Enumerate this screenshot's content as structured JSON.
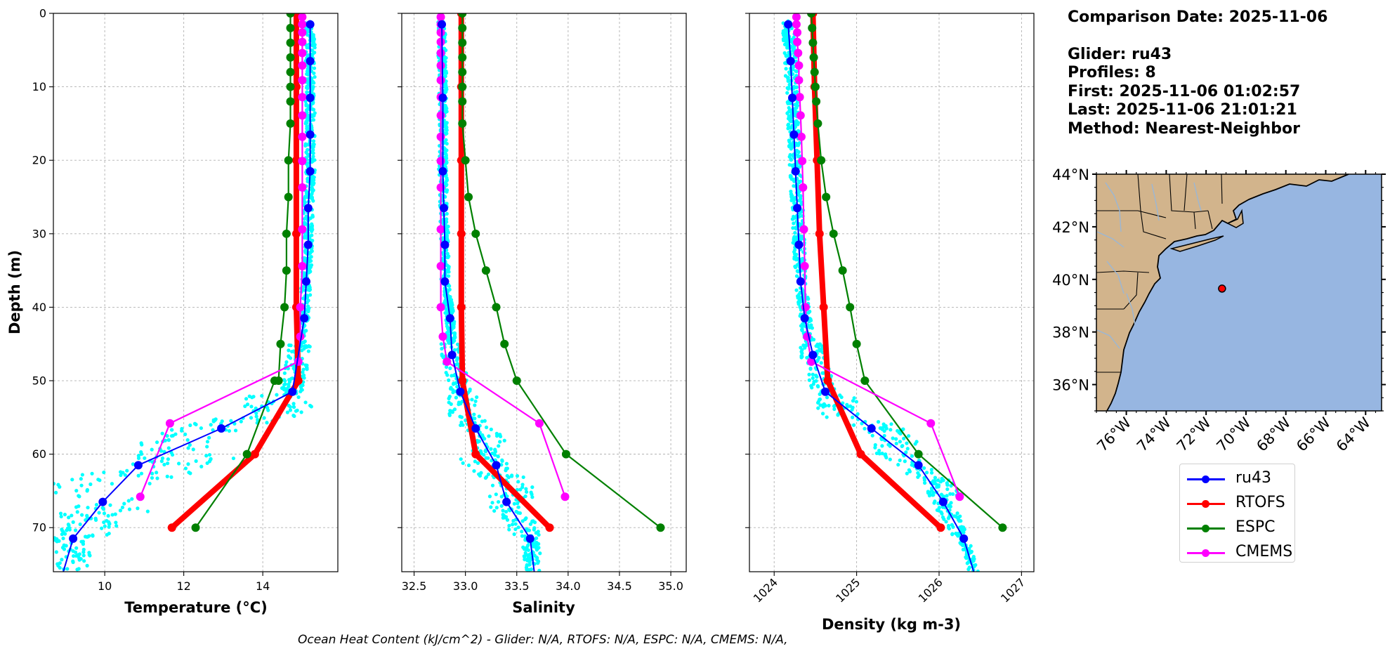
{
  "info": {
    "comparison_date": "Comparison Date: 2025-11-06",
    "glider": "Glider: ru43",
    "profiles": "Profiles: 8",
    "first": "First: 2025-11-06 01:02:57",
    "last": "Last: 2025-11-06 21:01:21",
    "method": "Method: Nearest-Neighbor"
  },
  "footer": "Ocean Heat Content (kJ/cm^2) - Glider: N/A,  RTOFS: N/A,  ESPC: N/A,  CMEMS: N/A,",
  "colors": {
    "ru43": "#0000ff",
    "RTOFS": "#ff0000",
    "ESPC": "#008000",
    "CMEMS": "#ff00ff",
    "raw": "#00ffff",
    "ocean": "#97b6e1",
    "land": "#d2b48c",
    "lakes": "#9ab7d6"
  },
  "legend": [
    {
      "key": "ru43",
      "label": "ru43"
    },
    {
      "key": "RTOFS",
      "label": "RTOFS"
    },
    {
      "key": "ESPC",
      "label": "ESPC"
    },
    {
      "key": "CMEMS",
      "label": "CMEMS"
    }
  ],
  "chart_data": [
    {
      "type": "line",
      "panel": "temperature",
      "xlabel": "Temperature (°C)",
      "ylabel": "Depth (m)",
      "xlim": [
        8.7,
        15.9
      ],
      "ylim": [
        76,
        0
      ],
      "xticks": [
        10,
        12,
        14
      ],
      "yticks": [
        0,
        10,
        20,
        30,
        40,
        50,
        60,
        70
      ],
      "grid": true,
      "series": [
        {
          "name": "ru43",
          "x": [
            15.2,
            15.2,
            15.2,
            15.2,
            15.2,
            15.15,
            15.15,
            15.1,
            15.05,
            14.75,
            12.95,
            10.85,
            9.95,
            9.2,
            8.95
          ],
          "y": [
            1.5,
            6.5,
            11.5,
            16.5,
            21.5,
            26.5,
            31.5,
            36.5,
            41.5,
            51.5,
            56.5,
            61.5,
            66.5,
            71.5,
            76
          ]
        },
        {
          "name": "RTOFS",
          "x": [
            14.85,
            14.85,
            14.85,
            14.85,
            14.85,
            14.9,
            13.8,
            11.7
          ],
          "y": [
            0,
            10,
            20,
            30,
            40,
            50,
            60,
            70
          ]
        },
        {
          "name": "ESPC",
          "x": [
            14.7,
            14.7,
            14.7,
            14.7,
            14.7,
            14.7,
            14.7,
            14.7,
            14.65,
            14.65,
            14.6,
            14.6,
            14.55,
            14.45,
            14.4,
            14.3,
            13.6,
            12.3
          ],
          "y": [
            0,
            2,
            4,
            6,
            8,
            10,
            12,
            15,
            20,
            25,
            30,
            35,
            40,
            45,
            50,
            50,
            60,
            70
          ]
        },
        {
          "name": "CMEMS",
          "x": [
            15.0,
            15.0,
            15.0,
            15.0,
            15.0,
            15.0,
            15.0,
            15.0,
            15.0,
            15.0,
            15.0,
            15.0,
            15.0,
            15.0,
            14.95,
            14.95,
            14.9,
            11.65,
            10.9
          ],
          "y": [
            0.5,
            1.5,
            2.6,
            3.9,
            5.4,
            7.1,
            9.1,
            11.4,
            13.9,
            16.8,
            20.1,
            23.7,
            29.4,
            34.4,
            40.0,
            44.0,
            47.4,
            55.8,
            65.8
          ]
        }
      ]
    },
    {
      "type": "line",
      "panel": "salinity",
      "xlabel": "Salinity",
      "xlim": [
        32.38,
        35.15
      ],
      "ylim": [
        76,
        0
      ],
      "xticks": [
        32.5,
        33.0,
        33.5,
        34.0,
        34.5,
        35.0
      ],
      "grid": true,
      "series": [
        {
          "name": "ru43",
          "x": [
            32.77,
            32.78,
            32.78,
            32.79,
            32.8,
            32.8,
            32.85,
            32.87,
            32.95,
            33.1,
            33.3,
            33.4,
            33.63,
            33.67
          ],
          "y": [
            1.5,
            11.5,
            21.5,
            26.5,
            31.5,
            36.5,
            41.5,
            46.5,
            51.5,
            56.5,
            61.5,
            66.5,
            71.5,
            76
          ]
        },
        {
          "name": "RTOFS",
          "x": [
            32.96,
            32.96,
            32.96,
            32.96,
            32.96,
            32.97,
            33.1,
            33.82
          ],
          "y": [
            0,
            10,
            20,
            30,
            40,
            50,
            60,
            70
          ]
        },
        {
          "name": "ESPC",
          "x": [
            32.97,
            32.97,
            32.97,
            32.97,
            32.97,
            32.97,
            32.97,
            32.97,
            33.0,
            33.03,
            33.1,
            33.2,
            33.3,
            33.38,
            33.5,
            33.98,
            34.9
          ],
          "y": [
            0,
            2,
            4,
            6,
            8,
            10,
            12,
            15,
            20,
            25,
            30,
            35,
            40,
            45,
            50,
            60,
            70
          ]
        },
        {
          "name": "CMEMS",
          "x": [
            32.76,
            32.76,
            32.76,
            32.76,
            32.76,
            32.76,
            32.76,
            32.76,
            32.76,
            32.76,
            32.76,
            32.76,
            32.76,
            32.76,
            32.76,
            32.78,
            32.82,
            33.72,
            33.97
          ],
          "y": [
            0.5,
            1.5,
            2.6,
            3.9,
            5.4,
            7.1,
            9.1,
            11.4,
            13.9,
            16.8,
            20.1,
            23.7,
            29.4,
            34.4,
            40.0,
            44.0,
            47.4,
            55.8,
            65.8
          ]
        }
      ]
    },
    {
      "type": "line",
      "panel": "density",
      "xlabel": "Density (kg m-3)",
      "xlim": [
        1023.7,
        1027.15
      ],
      "ylim": [
        76,
        0
      ],
      "xticks": [
        1024,
        1025,
        1026,
        1027
      ],
      "grid": true,
      "series": [
        {
          "name": "ru43",
          "x": [
            1024.17,
            1024.2,
            1024.22,
            1024.24,
            1024.26,
            1024.28,
            1024.3,
            1024.32,
            1024.37,
            1024.47,
            1024.62,
            1025.18,
            1025.75,
            1026.05,
            1026.3,
            1026.42
          ],
          "y": [
            1.5,
            6.5,
            11.5,
            16.5,
            21.5,
            26.5,
            31.5,
            36.5,
            41.5,
            46.5,
            51.5,
            56.5,
            61.5,
            66.5,
            71.5,
            76
          ]
        },
        {
          "name": "RTOFS",
          "x": [
            1024.47,
            1024.49,
            1024.52,
            1024.55,
            1024.6,
            1024.65,
            1025.05,
            1026.02
          ],
          "y": [
            0,
            10,
            20,
            30,
            40,
            50,
            60,
            70
          ]
        },
        {
          "name": "ESPC",
          "x": [
            1024.45,
            1024.46,
            1024.47,
            1024.48,
            1024.49,
            1024.5,
            1024.51,
            1024.53,
            1024.57,
            1024.63,
            1024.72,
            1024.83,
            1024.92,
            1025.0,
            1025.1,
            1025.75,
            1026.77
          ],
          "y": [
            0,
            2,
            4,
            6,
            8,
            10,
            12,
            15,
            20,
            25,
            30,
            35,
            40,
            45,
            50,
            60,
            70
          ]
        },
        {
          "name": "CMEMS",
          "x": [
            1024.27,
            1024.27,
            1024.28,
            1024.28,
            1024.29,
            1024.3,
            1024.3,
            1024.31,
            1024.32,
            1024.33,
            1024.34,
            1024.35,
            1024.36,
            1024.37,
            1024.38,
            1024.4,
            1024.45,
            1025.9,
            1026.25
          ],
          "y": [
            0.5,
            1.5,
            2.6,
            3.9,
            5.4,
            7.1,
            9.1,
            11.4,
            13.9,
            16.8,
            20.1,
            23.7,
            29.4,
            34.4,
            40.0,
            44.0,
            47.4,
            55.8,
            65.8
          ]
        }
      ]
    },
    {
      "type": "map",
      "panel": "location",
      "xlim": [
        -77.5,
        -63.2
      ],
      "ylim": [
        35,
        44
      ],
      "xticks": [
        -76,
        -74,
        -72,
        -70,
        -68,
        -66,
        -64
      ],
      "xticklabels": [
        "76°W",
        "74°W",
        "72°W",
        "70°W",
        "68°W",
        "66°W",
        "64°W"
      ],
      "yticks": [
        36,
        38,
        40,
        42,
        44
      ],
      "yticklabels": [
        "36°N",
        "38°N",
        "40°N",
        "42°N",
        "44°N"
      ],
      "glider_position": {
        "lon": -71.2,
        "lat": 39.65
      }
    }
  ]
}
